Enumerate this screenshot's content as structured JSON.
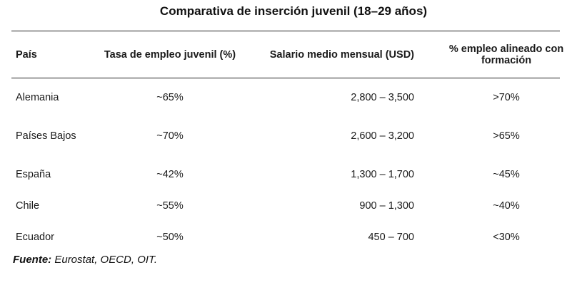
{
  "title": "Comparativa de inserción juvenil (18–29 años)",
  "table": {
    "headers": {
      "country": "País",
      "employment_rate": "Tasa de empleo juvenil (%)",
      "salary": "Salario medio mensual (USD)",
      "aligned": "% empleo alineado con formación"
    },
    "rows": [
      {
        "country": "Alemania",
        "employment_rate": "~65%",
        "salary": "2,800 – 3,500",
        "aligned": ">70%"
      },
      {
        "country": "Países Bajos",
        "employment_rate": "~70%",
        "salary": "2,600 – 3,200",
        "aligned": ">65%"
      },
      {
        "country": "España",
        "employment_rate": "~42%",
        "salary": "1,300 – 1,700",
        "aligned": "~45%"
      },
      {
        "country": "Chile",
        "employment_rate": "~55%",
        "salary": "900 – 1,300",
        "aligned": "~40%"
      },
      {
        "country": "Ecuador",
        "employment_rate": "~50%",
        "salary": "450 – 700",
        "aligned": "<30%"
      }
    ]
  },
  "source": {
    "label": "Fuente:",
    "text": "Eurostat, OECD, OIT."
  }
}
